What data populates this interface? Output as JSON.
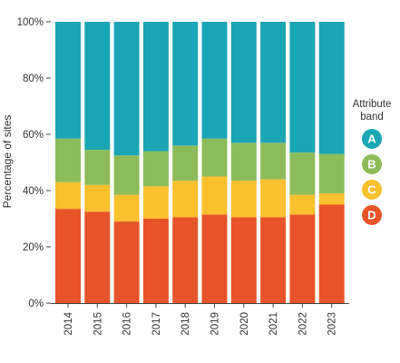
{
  "chart_data": {
    "type": "bar",
    "stacked": true,
    "ylabel": "Percentage of sites",
    "ylim": [
      0,
      100
    ],
    "yticks": [
      0,
      20,
      40,
      60,
      80,
      100
    ],
    "ytick_labels": [
      "0%",
      "20%",
      "40%",
      "60%",
      "80%",
      "100%"
    ],
    "grid": false,
    "legend": {
      "title": "Attribute band",
      "title_lines": [
        "Attribute",
        "band"
      ],
      "placement": "right"
    },
    "categories": [
      "2014",
      "2015",
      "2016",
      "2017",
      "2018",
      "2019",
      "2020",
      "2021",
      "2022",
      "2023"
    ],
    "series": [
      {
        "name": "D",
        "color": "#e8542a",
        "values": [
          33.5,
          32.5,
          29.0,
          30.0,
          30.5,
          31.5,
          30.5,
          30.5,
          31.5,
          35.0
        ]
      },
      {
        "name": "C",
        "color": "#fbc02d",
        "values": [
          9.5,
          9.5,
          9.5,
          11.5,
          13.0,
          13.5,
          13.0,
          13.5,
          7.0,
          4.0
        ]
      },
      {
        "name": "B",
        "color": "#8cbc5a",
        "values": [
          15.5,
          12.5,
          14.0,
          12.5,
          12.5,
          13.5,
          13.5,
          13.0,
          15.0,
          14.0
        ]
      },
      {
        "name": "A",
        "color": "#1aa6b4",
        "values": [
          41.5,
          45.5,
          47.5,
          46.0,
          44.0,
          41.5,
          43.0,
          43.0,
          46.5,
          47.0
        ]
      }
    ],
    "legend_order": [
      "A",
      "B",
      "C",
      "D"
    ]
  }
}
